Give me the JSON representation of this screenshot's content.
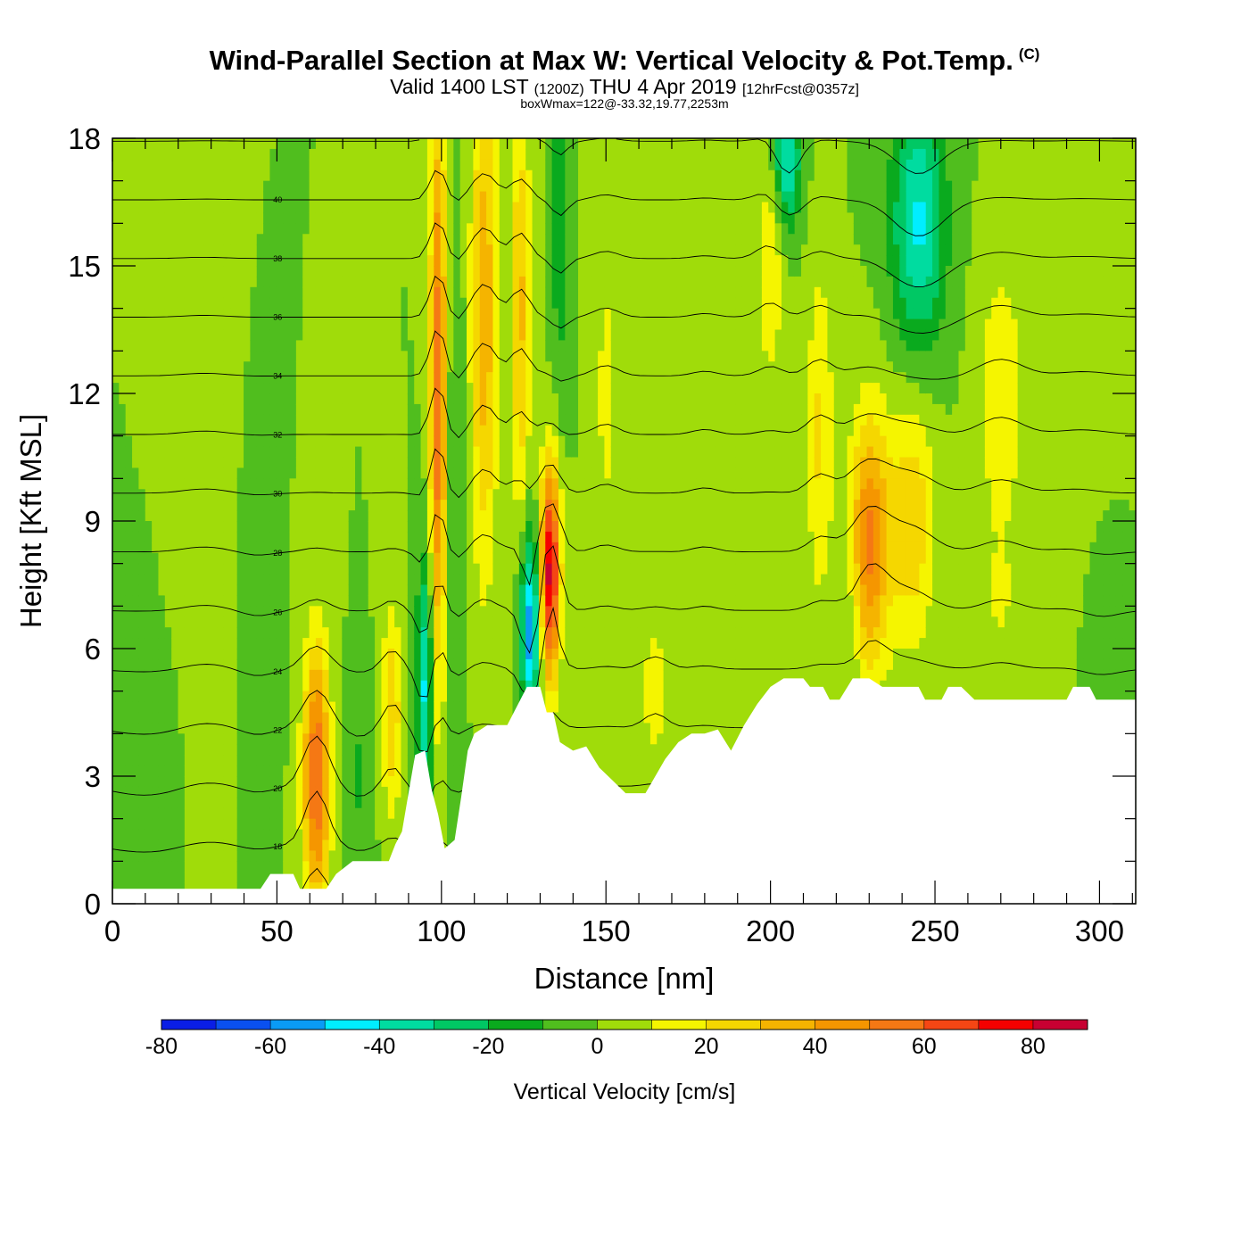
{
  "title": {
    "main": "Wind-Parallel Section at Max W: Vertical Velocity & Pot.Temp.",
    "copyright": "(C)",
    "valid_prefix": "Valid 1400 LST",
    "valid_utc": "(1200Z)",
    "valid_date": "THU 4 Apr 2019",
    "forecast": "[12hrFcst@0357z]",
    "box_wmax": "boxWmax=122@-33.32,19.77,2253m"
  },
  "chart_data": {
    "type": "heatmap",
    "xlabel": "Distance [nm]",
    "ylabel": "Height [Kft MSL]",
    "xlim": [
      0,
      311
    ],
    "ylim": [
      0,
      18
    ],
    "x_ticks": [
      0,
      50,
      100,
      150,
      200,
      250,
      300
    ],
    "y_ticks": [
      0,
      3,
      6,
      9,
      12,
      15,
      18
    ],
    "colorbar": {
      "label": "Vertical Velocity [cm/s]",
      "levels": [
        -80,
        -70,
        -60,
        -50,
        -40,
        -30,
        -20,
        -10,
        0,
        10,
        20,
        30,
        40,
        50,
        60,
        70,
        80,
        90
      ],
      "tick_labels": [
        "-80",
        "-60",
        "-40",
        "-20",
        "0",
        "20",
        "40",
        "60",
        "80"
      ],
      "colors": [
        "#0a1ee6",
        "#0a50f0",
        "#0a9bf5",
        "#00eeff",
        "#00dca0",
        "#00c864",
        "#0aaa1e",
        "#50be1e",
        "#a0dc0a",
        "#f5f500",
        "#f5d700",
        "#f5b400",
        "#f59600",
        "#f57814",
        "#f54614",
        "#f50000",
        "#c80032"
      ]
    },
    "terrain": [
      [
        0,
        0.35
      ],
      [
        45,
        0.35
      ],
      [
        48,
        0.7
      ],
      [
        55,
        0.7
      ],
      [
        57,
        0.35
      ],
      [
        65,
        0.35
      ],
      [
        68,
        0.7
      ],
      [
        73,
        1.0
      ],
      [
        84,
        1.0
      ],
      [
        86,
        1.4
      ],
      [
        88,
        1.7
      ],
      [
        90,
        2.6
      ],
      [
        92,
        3.5
      ],
      [
        95,
        3.6
      ],
      [
        97,
        2.7
      ],
      [
        99,
        2.1
      ],
      [
        101,
        1.3
      ],
      [
        104,
        1.5
      ],
      [
        106,
        2.5
      ],
      [
        108,
        3.6
      ],
      [
        110,
        4.0
      ],
      [
        114,
        4.2
      ],
      [
        120,
        4.2
      ],
      [
        124,
        4.8
      ],
      [
        126,
        5.1
      ],
      [
        130,
        5.1
      ],
      [
        132,
        4.5
      ],
      [
        134,
        4.5
      ],
      [
        136,
        3.8
      ],
      [
        140,
        3.6
      ],
      [
        144,
        3.7
      ],
      [
        148,
        3.2
      ],
      [
        152,
        2.9
      ],
      [
        156,
        2.6
      ],
      [
        162,
        2.6
      ],
      [
        168,
        3.4
      ],
      [
        172,
        3.8
      ],
      [
        176,
        4.0
      ],
      [
        180,
        4.0
      ],
      [
        184,
        4.1
      ],
      [
        188,
        3.6
      ],
      [
        192,
        4.2
      ],
      [
        196,
        4.7
      ],
      [
        200,
        5.1
      ],
      [
        204,
        5.3
      ],
      [
        208,
        5.3
      ],
      [
        210,
        5.3
      ],
      [
        212,
        5.1
      ],
      [
        216,
        5.1
      ],
      [
        218,
        4.8
      ],
      [
        221,
        4.8
      ],
      [
        225,
        5.3
      ],
      [
        230,
        5.3
      ],
      [
        234,
        5.1
      ],
      [
        240,
        5.1
      ],
      [
        245,
        5.1
      ],
      [
        247,
        4.8
      ],
      [
        252,
        4.8
      ],
      [
        254,
        5.1
      ],
      [
        258,
        5.1
      ],
      [
        262,
        4.8
      ],
      [
        272,
        4.8
      ],
      [
        290,
        4.8
      ],
      [
        292,
        5.1
      ],
      [
        297,
        5.1
      ],
      [
        299,
        4.8
      ],
      [
        311,
        4.8
      ]
    ],
    "w_field": {
      "background": 0,
      "features": [
        {
          "x": 10,
          "y": 2.5,
          "sx": 10,
          "sy": 2.5,
          "w": -10
        },
        {
          "x": 28,
          "y": 6.0,
          "sx": 7,
          "sy": 7,
          "w": 6
        },
        {
          "x": 44,
          "y": 4.5,
          "sx": 5,
          "sy": 4,
          "w": -8
        },
        {
          "x": 62,
          "y": 3.0,
          "sx": 4,
          "sy": 3,
          "w": 62
        },
        {
          "x": 75,
          "y": 3.0,
          "sx": 4,
          "sy": 2,
          "w": -12
        },
        {
          "x": 85,
          "y": 4.5,
          "sx": 3,
          "sy": 2.5,
          "w": 28
        },
        {
          "x": 95,
          "y": 5.0,
          "sx": 2.5,
          "sy": 3,
          "w": -42
        },
        {
          "x": 99,
          "y": 12.0,
          "sx": 2.5,
          "sy": 7,
          "w": 58
        },
        {
          "x": 104,
          "y": 8.0,
          "sx": 3,
          "sy": 10,
          "w": -10
        },
        {
          "x": 113,
          "y": 14.0,
          "sx": 4,
          "sy": 6,
          "w": 38
        },
        {
          "x": 124,
          "y": 14.0,
          "sx": 3,
          "sy": 5,
          "w": 32
        },
        {
          "x": 127,
          "y": 6.5,
          "sx": 3,
          "sy": 2.2,
          "w": -58
        },
        {
          "x": 133,
          "y": 7.8,
          "sx": 3,
          "sy": 2.5,
          "w": 84
        },
        {
          "x": 136,
          "y": 16.0,
          "sx": 2.5,
          "sy": 4,
          "w": -18
        },
        {
          "x": 150,
          "y": 12.0,
          "sx": 4,
          "sy": 5,
          "w": 12
        },
        {
          "x": 165,
          "y": 5.0,
          "sx": 4,
          "sy": 1.5,
          "w": 18
        },
        {
          "x": 180,
          "y": 10.0,
          "sx": 4,
          "sy": 6,
          "w": 6
        },
        {
          "x": 200,
          "y": 15.0,
          "sx": 4,
          "sy": 3,
          "w": 18
        },
        {
          "x": 205,
          "y": 17.5,
          "sx": 4,
          "sy": 1.5,
          "w": -42
        },
        {
          "x": 215,
          "y": 11.0,
          "sx": 4,
          "sy": 4,
          "w": 22
        },
        {
          "x": 225,
          "y": 7.0,
          "sx": 3,
          "sy": 2,
          "w": -8
        },
        {
          "x": 230,
          "y": 8.5,
          "sx": 6,
          "sy": 3,
          "w": 52
        },
        {
          "x": 245,
          "y": 16.0,
          "sx": 8,
          "sy": 3,
          "w": -42
        },
        {
          "x": 243,
          "y": 9.0,
          "sx": 7,
          "sy": 3,
          "w": 28
        },
        {
          "x": 270,
          "y": 12.0,
          "sx": 7,
          "sy": 3,
          "w": 20
        },
        {
          "x": 270,
          "y": 7.0,
          "sx": 6,
          "sy": 2,
          "w": 10
        },
        {
          "x": 295,
          "y": 10.0,
          "sx": 8,
          "sy": 5,
          "w": 6
        },
        {
          "x": 300,
          "y": 6.5,
          "sx": 6,
          "sy": 2.5,
          "w": -10
        }
      ]
    },
    "theta_contours": {
      "levels": [
        14,
        16,
        18,
        20,
        22,
        24,
        26,
        28,
        30,
        32,
        34,
        36,
        38,
        40,
        42
      ],
      "label_values": [
        "18",
        "20",
        "22",
        "24",
        "26",
        "28",
        "30",
        "32",
        "34",
        "36",
        "38",
        "40"
      ]
    }
  }
}
